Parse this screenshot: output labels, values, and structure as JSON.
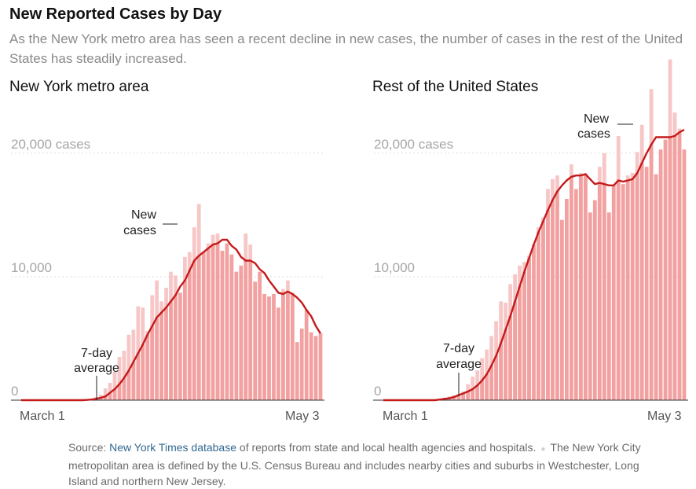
{
  "title": "New Reported Cases by Day",
  "subtitle": "As the New York metro area has seen a recent decline in new cases, the number of cases in the rest of the United States has steadily increased.",
  "source": {
    "prefix": "Source: ",
    "link_text": "New York Times database",
    "text": " of reports from state and local health agencies and hospitals.",
    "note": "The New York City metropolitan area is defined by the U.S. Census Bureau and includes nearby cities and suburbs in Westchester, Long Island and northern New Jersey."
  },
  "colors": {
    "bar_fill": "#f2a0a0",
    "bar_fill_light": "#f7c6c6",
    "line": "#c41a1a",
    "grid": "#dcdcdc",
    "axis": "#333333"
  },
  "chart_data": [
    {
      "type": "bar",
      "title": "New York metro area",
      "x_start_label": "March 1",
      "x_end_label": "May 3",
      "gridlines": [
        {
          "value": 0,
          "label": "0"
        },
        {
          "value": 10000,
          "label": "10,000"
        },
        {
          "value": 20000,
          "label": "20,000 cases"
        }
      ],
      "ylim": [
        0,
        27000
      ],
      "series": [
        {
          "name": "New cases",
          "type": "bar",
          "values": [
            0,
            0,
            0,
            0,
            0,
            0,
            0,
            0,
            0,
            0,
            10,
            20,
            40,
            60,
            80,
            100,
            250,
            450,
            950,
            1400,
            2300,
            3500,
            4000,
            5300,
            5700,
            7600,
            7500,
            5600,
            8500,
            9700,
            8000,
            9100,
            10400,
            10100,
            8700,
            11600,
            12000,
            14000,
            15900,
            12000,
            12700,
            13400,
            13500,
            12100,
            12700,
            11800,
            10400,
            10900,
            13500,
            12600,
            9600,
            10400,
            8600,
            8400,
            8600,
            7500,
            9000,
            9700,
            8700,
            4700,
            5800,
            7300,
            5500,
            5200,
            5400
          ]
        },
        {
          "name": "7-day average",
          "type": "line",
          "values": [
            0,
            0,
            0,
            0,
            0,
            0,
            0,
            0,
            0,
            0,
            0,
            0,
            0,
            0,
            20,
            50,
            100,
            200,
            300,
            600,
            900,
            1300,
            1800,
            2400,
            3100,
            3800,
            4500,
            5300,
            6000,
            6700,
            7100,
            7500,
            8000,
            8500,
            9200,
            9700,
            10500,
            11300,
            11700,
            12000,
            12300,
            12600,
            12700,
            13000,
            13000,
            12500,
            12200,
            11600,
            11300,
            11300,
            11100,
            10600,
            10300,
            9700,
            9200,
            8700,
            8600,
            8800,
            8600,
            8300,
            7900,
            7300,
            6800,
            6000,
            5400
          ]
        }
      ],
      "annotations": [
        {
          "text": [
            "New",
            "cases"
          ]
        },
        {
          "text": [
            "7-day",
            "average"
          ]
        }
      ]
    },
    {
      "type": "bar",
      "title": "Rest of the United States",
      "x_start_label": "March 1",
      "x_end_label": "May 3",
      "gridlines": [
        {
          "value": 0,
          "label": "0"
        },
        {
          "value": 10000,
          "label": "10,000"
        },
        {
          "value": 20000,
          "label": "20,000 cases"
        }
      ],
      "ylim": [
        0,
        27000
      ],
      "series": [
        {
          "name": "New cases",
          "type": "bar",
          "values": [
            0,
            0,
            0,
            0,
            0,
            0,
            0,
            0,
            10,
            30,
            60,
            80,
            100,
            200,
            300,
            400,
            500,
            700,
            1300,
            1900,
            2400,
            3400,
            4100,
            5200,
            6400,
            8000,
            7900,
            9400,
            10200,
            10900,
            11200,
            11700,
            12600,
            14000,
            14800,
            17100,
            17900,
            18200,
            14600,
            16300,
            19100,
            17100,
            18400,
            18400,
            15200,
            16200,
            18900,
            20000,
            15200,
            17400,
            21400,
            17500,
            18200,
            18400,
            20100,
            22300,
            18900,
            25200,
            18300,
            20300,
            21100,
            27600,
            23300,
            22000,
            20300
          ]
        },
        {
          "name": "7-day average",
          "type": "line",
          "values": [
            0,
            0,
            0,
            0,
            0,
            0,
            0,
            0,
            0,
            0,
            0,
            0,
            50,
            100,
            150,
            250,
            400,
            550,
            700,
            900,
            1200,
            1600,
            2100,
            2800,
            3600,
            4600,
            5700,
            6800,
            8000,
            9200,
            10400,
            11500,
            12600,
            13600,
            14500,
            15400,
            16200,
            16900,
            17400,
            17800,
            18100,
            18200,
            18200,
            18300,
            17900,
            17500,
            17600,
            17500,
            17400,
            17400,
            17800,
            17700,
            17800,
            17900,
            18400,
            19200,
            20000,
            20700,
            21300,
            21300,
            21300,
            21300,
            21400,
            21700,
            21900
          ]
        }
      ],
      "annotations": [
        {
          "text": [
            "New",
            "cases"
          ]
        },
        {
          "text": [
            "7-day",
            "average"
          ]
        }
      ]
    }
  ]
}
